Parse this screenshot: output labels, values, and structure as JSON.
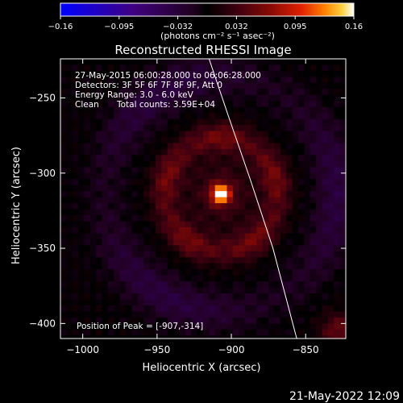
{
  "colorbar": {
    "ticks": [
      "-0.16",
      "-0.095",
      "-0.032",
      "0.032",
      "0.095",
      "0.16"
    ],
    "unit_label": "(photons cm⁻² s⁻¹ asec⁻²)",
    "colormap": [
      "#0000ff",
      "#40007f",
      "#200020",
      "#000000",
      "#3c0010",
      "#8a0a05",
      "#e02000",
      "#ff8000",
      "#ffd040",
      "#ffffff"
    ]
  },
  "info": {
    "line1": "27-May-2015 06:00:28.000 to 06:06:28.000",
    "line2": "Detectors: 3F 5F 6F 7F 8F 9F, Att 0",
    "line3": "Energy Range: 3.0 - 6.0 keV",
    "line4_left": "Clean",
    "line4_right": "Total counts: 3.59E+04"
  },
  "peak_label": "Position of Peak = [-907,-314]",
  "timestamp": "21-May-2022 12:09",
  "chart_data": {
    "type": "heatmap",
    "title": "Reconstructed RHESSI Image",
    "xlabel": "Heliocentric X (arcsec)",
    "ylabel": "Heliocentric Y (arcsec)",
    "xlim": [
      -1015,
      -823
    ],
    "ylim": [
      -410,
      -224
    ],
    "xticks": [
      -1000,
      -950,
      -900,
      -850
    ],
    "yticks": [
      -250,
      -300,
      -350,
      -400
    ],
    "xtick_labels": [
      "−1000",
      "−950",
      "−900",
      "−850"
    ],
    "ytick_labels": [
      "−250",
      "−300",
      "−350",
      "−400"
    ],
    "value_range": [
      -0.16,
      0.16
    ],
    "peak": {
      "x": -907,
      "y": -314,
      "value": 0.16
    },
    "ring": {
      "center_x": -907,
      "center_y": -314,
      "radius": 38,
      "width": 10,
      "amplitude": 0.055
    },
    "limb_line": [
      [
        -915,
        -224
      ],
      [
        -902,
        -262
      ],
      [
        -887,
        -305
      ],
      [
        -872,
        -350
      ],
      [
        -856,
        -410
      ]
    ]
  }
}
